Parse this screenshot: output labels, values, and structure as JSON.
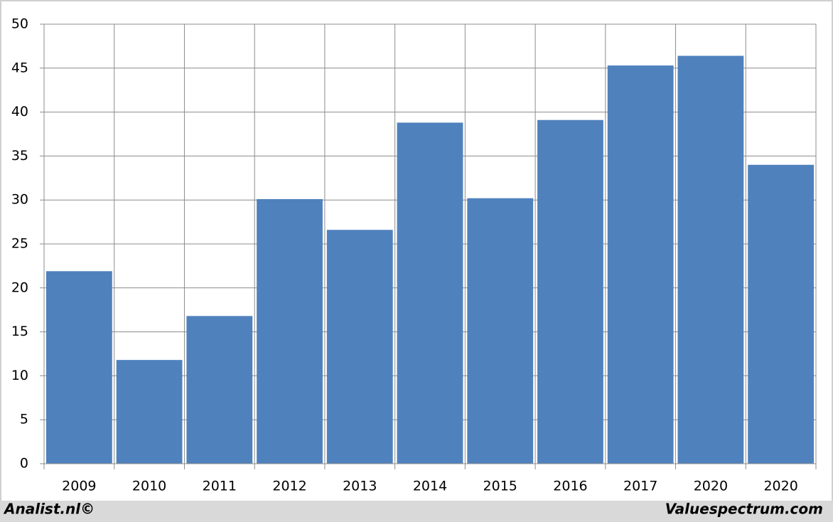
{
  "chart_data": {
    "type": "bar",
    "categories": [
      "2009",
      "2010",
      "2011",
      "2012",
      "2013",
      "2014",
      "2015",
      "2016",
      "2017",
      "2020",
      "2020"
    ],
    "values": [
      21.9,
      11.8,
      16.8,
      30.1,
      26.6,
      38.8,
      30.2,
      39.1,
      45.3,
      46.4,
      34.0
    ],
    "color": "#4f81bd",
    "ylim": [
      0,
      50
    ],
    "yticks": [
      0,
      5,
      10,
      15,
      20,
      25,
      30,
      35,
      40,
      45,
      50
    ],
    "grid": true,
    "footer_left": "Analist.nl©",
    "footer_right": "Valuespectrum.com"
  }
}
